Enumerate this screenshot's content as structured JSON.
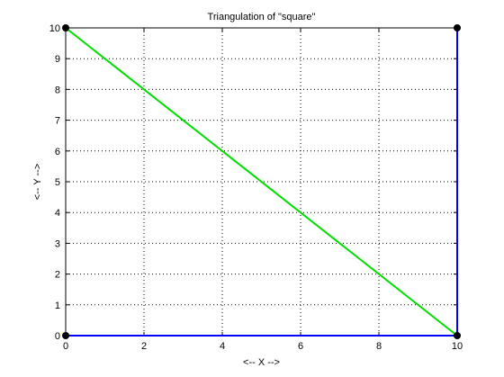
{
  "chart_data": {
    "type": "line",
    "title": "Triangulation of \"square\"",
    "xlabel": "<-- X -->",
    "ylabel": "<-- Y -->",
    "xlim": [
      0,
      10
    ],
    "ylim": [
      0,
      10
    ],
    "xticks": [
      0,
      2,
      4,
      6,
      8,
      10
    ],
    "yticks": [
      0,
      1,
      2,
      3,
      4,
      5,
      6,
      7,
      8,
      9,
      10
    ],
    "grid": true,
    "grid_style": "dotted",
    "segments": [
      {
        "color": "#0000ff",
        "x": [
          0,
          10
        ],
        "y": [
          0,
          0
        ]
      },
      {
        "color": "#0000ff",
        "x": [
          10,
          10
        ],
        "y": [
          0,
          10
        ]
      },
      {
        "color": "#00dd00",
        "x": [
          0,
          10
        ],
        "y": [
          10,
          0
        ]
      }
    ],
    "points": {
      "color": "#000000",
      "x": [
        0,
        10,
        10,
        0
      ],
      "y": [
        0,
        0,
        10,
        10
      ]
    }
  }
}
